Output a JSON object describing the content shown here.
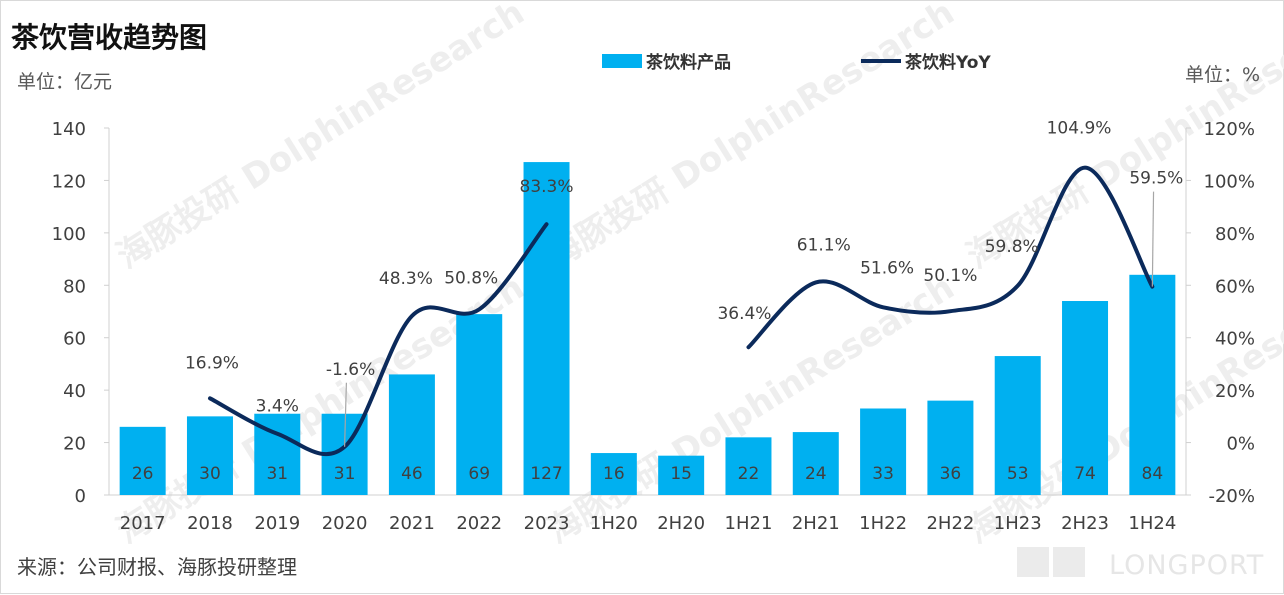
{
  "title": "茶饮营收趋势图",
  "left_unit": "单位：亿元",
  "right_unit": "单位：%",
  "source": "来源：公司财报、海豚投研整理",
  "watermark": "海豚投研 DolphinResearch",
  "brand_logo": "LONGPORT",
  "colors": {
    "bar": "#00b0f0",
    "line": "#0b2a5b",
    "text": "#404040",
    "axis": "#d0d0d0"
  },
  "chart_data": {
    "type": "bar",
    "categories": [
      "2017",
      "2018",
      "2019",
      "2020",
      "2021",
      "2022",
      "2023",
      "1H20",
      "2H20",
      "1H21",
      "2H21",
      "1H22",
      "2H22",
      "1H23",
      "2H23",
      "1H24"
    ],
    "series": [
      {
        "name": "茶饮料产品",
        "type": "bar",
        "axis": "left",
        "values": [
          26,
          30,
          31,
          31,
          46,
          69,
          127,
          16,
          15,
          22,
          24,
          33,
          36,
          53,
          74,
          84
        ],
        "labels": [
          "26",
          "30",
          "31",
          "31",
          "46",
          "69",
          "127",
          "16",
          "15",
          "22",
          "24",
          "33",
          "36",
          "53",
          "74",
          "84"
        ]
      },
      {
        "name": "茶饮料YoY",
        "type": "line",
        "axis": "right",
        "values": [
          null,
          16.9,
          3.4,
          -1.6,
          48.3,
          50.8,
          83.3,
          null,
          null,
          36.4,
          61.1,
          51.6,
          50.1,
          59.8,
          104.9,
          59.5
        ],
        "labels": [
          "",
          "16.9%",
          "3.4%",
          "-1.6%",
          "48.3%",
          "50.8%",
          "83.3%",
          "",
          "",
          "36.4%",
          "61.1%",
          "51.6%",
          "50.1%",
          "59.8%",
          "104.9%",
          "59.5%"
        ]
      }
    ],
    "y_left": {
      "min": 0,
      "max": 140,
      "ticks": [
        "0",
        "20",
        "40",
        "60",
        "80",
        "100",
        "120",
        "140"
      ]
    },
    "y_right": {
      "min": -20,
      "max": 120,
      "ticks": [
        "-20%",
        "0%",
        "20%",
        "40%",
        "60%",
        "80%",
        "100%",
        "120%"
      ]
    },
    "legend_position": "top",
    "grid": false
  }
}
